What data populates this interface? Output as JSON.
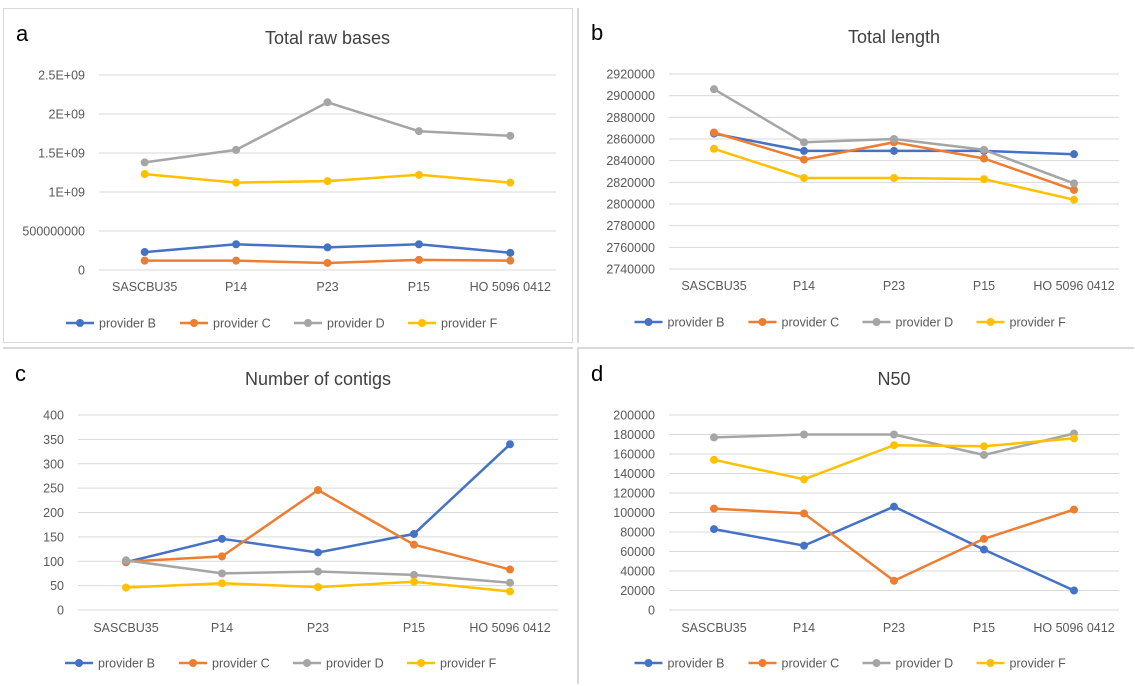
{
  "panels": [
    {
      "letter": "a",
      "chart_data": {
        "type": "line",
        "title": "Total raw bases",
        "xlabel": "",
        "ylabel": "",
        "categories": [
          "SASCBU35",
          "P14",
          "P23",
          "P15",
          "HO 5096 0412"
        ],
        "ylim": [
          0,
          2500000000
        ],
        "yticks": [
          0,
          500000000,
          1000000000,
          1500000000,
          2000000000,
          2500000000
        ],
        "ytick_labels": [
          "0",
          "500000000",
          "1E+09",
          "1.5E+09",
          "2E+09",
          "2.5E+09"
        ],
        "grid": true,
        "legend": "bottom",
        "series": [
          {
            "name": "provider B",
            "color": "#4472c4",
            "values": [
              230000000,
              330000000,
              290000000,
              330000000,
              220000000
            ]
          },
          {
            "name": "provider C",
            "color": "#ed7d31",
            "values": [
              120000000,
              120000000,
              90000000,
              130000000,
              120000000
            ]
          },
          {
            "name": "provider D",
            "color": "#a5a5a5",
            "values": [
              1380000000,
              1540000000,
              2150000000,
              1780000000,
              1720000000
            ]
          },
          {
            "name": "provider F",
            "color": "#ffc000",
            "values": [
              1230000000,
              1120000000,
              1140000000,
              1220000000,
              1120000000
            ]
          }
        ]
      }
    },
    {
      "letter": "b",
      "chart_data": {
        "type": "line",
        "title": "Total length",
        "xlabel": "",
        "ylabel": "",
        "categories": [
          "SASCBU35",
          "P14",
          "P23",
          "P15",
          "HO 5096 0412"
        ],
        "ylim": [
          2740000,
          2920000
        ],
        "yticks": [
          2740000,
          2760000,
          2780000,
          2800000,
          2820000,
          2840000,
          2860000,
          2880000,
          2900000,
          2920000
        ],
        "ytick_labels": [
          "2740000",
          "2760000",
          "2780000",
          "2800000",
          "2820000",
          "2840000",
          "2860000",
          "2880000",
          "2900000",
          "2920000"
        ],
        "grid": true,
        "legend": "bottom",
        "series": [
          {
            "name": "provider B",
            "color": "#4472c4",
            "values": [
              2865000,
              2849000,
              2849000,
              2849000,
              2846000
            ]
          },
          {
            "name": "provider C",
            "color": "#ed7d31",
            "values": [
              2866000,
              2841000,
              2857000,
              2842000,
              2813000
            ]
          },
          {
            "name": "provider D",
            "color": "#a5a5a5",
            "values": [
              2906000,
              2857000,
              2860000,
              2850000,
              2819000
            ]
          },
          {
            "name": "provider F",
            "color": "#ffc000",
            "values": [
              2851000,
              2824000,
              2824000,
              2823000,
              2804000
            ]
          }
        ]
      }
    },
    {
      "letter": "c",
      "chart_data": {
        "type": "line",
        "title": "Number of contigs",
        "xlabel": "",
        "ylabel": "",
        "categories": [
          "SASCBU35",
          "P14",
          "P23",
          "P15",
          "HO 5096 0412"
        ],
        "ylim": [
          0,
          400
        ],
        "yticks": [
          0,
          50,
          100,
          150,
          200,
          250,
          300,
          350,
          400
        ],
        "ytick_labels": [
          "0",
          "50",
          "100",
          "150",
          "200",
          "250",
          "300",
          "350",
          "400"
        ],
        "grid": true,
        "legend": "bottom",
        "series": [
          {
            "name": "provider B",
            "color": "#4472c4",
            "values": [
              98,
              146,
              118,
              156,
              340
            ]
          },
          {
            "name": "provider C",
            "color": "#ed7d31",
            "values": [
              99,
              110,
              246,
              134,
              83
            ]
          },
          {
            "name": "provider D",
            "color": "#a5a5a5",
            "values": [
              102,
              75,
              79,
              72,
              56
            ]
          },
          {
            "name": "provider F",
            "color": "#ffc000",
            "values": [
              46,
              55,
              47,
              58,
              38
            ]
          }
        ]
      }
    },
    {
      "letter": "d",
      "chart_data": {
        "type": "line",
        "title": "N50",
        "xlabel": "",
        "ylabel": "",
        "categories": [
          "SASCBU35",
          "P14",
          "P23",
          "P15",
          "HO 5096 0412"
        ],
        "ylim": [
          0,
          200000
        ],
        "yticks": [
          0,
          20000,
          40000,
          60000,
          80000,
          100000,
          120000,
          140000,
          160000,
          180000,
          200000
        ],
        "ytick_labels": [
          "0",
          "20000",
          "40000",
          "60000",
          "80000",
          "100000",
          "120000",
          "140000",
          "160000",
          "180000",
          "200000"
        ],
        "grid": true,
        "legend": "bottom",
        "series": [
          {
            "name": "provider B",
            "color": "#4472c4",
            "values": [
              83000,
              66000,
              106000,
              62000,
              20000
            ]
          },
          {
            "name": "provider C",
            "color": "#ed7d31",
            "values": [
              104000,
              99000,
              30000,
              73000,
              103000
            ]
          },
          {
            "name": "provider D",
            "color": "#a5a5a5",
            "values": [
              177000,
              180000,
              180000,
              159000,
              181000
            ]
          },
          {
            "name": "provider F",
            "color": "#ffc000",
            "values": [
              154000,
              134000,
              169000,
              168000,
              176000
            ]
          }
        ]
      }
    }
  ]
}
